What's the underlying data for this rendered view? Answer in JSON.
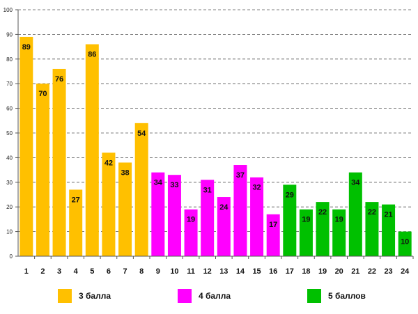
{
  "chart_data": {
    "type": "bar",
    "title": "",
    "xlabel": "",
    "ylabel": "",
    "ylim": [
      0,
      100
    ],
    "yticks": [
      "0",
      "10",
      "20",
      "30",
      "40",
      "50",
      "60",
      "70",
      "80",
      "90",
      "100"
    ],
    "categories": [
      "1",
      "2",
      "3",
      "4",
      "5",
      "6",
      "7",
      "8",
      "9",
      "10",
      "11",
      "12",
      "13",
      "14",
      "15",
      "16",
      "17",
      "18",
      "19",
      "20",
      "21",
      "22",
      "23",
      "24"
    ],
    "values": [
      89,
      70,
      76,
      27,
      86,
      42,
      38,
      54,
      34,
      33,
      19,
      31,
      24,
      37,
      32,
      17,
      29,
      19,
      22,
      19,
      34,
      22,
      21,
      10
    ],
    "groups": [
      0,
      0,
      0,
      0,
      0,
      0,
      0,
      0,
      1,
      1,
      1,
      1,
      1,
      1,
      1,
      1,
      2,
      2,
      2,
      2,
      2,
      2,
      2,
      2
    ],
    "grid": "horizontal dashed",
    "legend_position": "bottom"
  },
  "legend": [
    {
      "label": "3 балла",
      "color": "#FFC000"
    },
    {
      "label": "4 балла",
      "color": "#FF00FF"
    },
    {
      "label": "5 баллов",
      "color": "#00C000"
    }
  ]
}
